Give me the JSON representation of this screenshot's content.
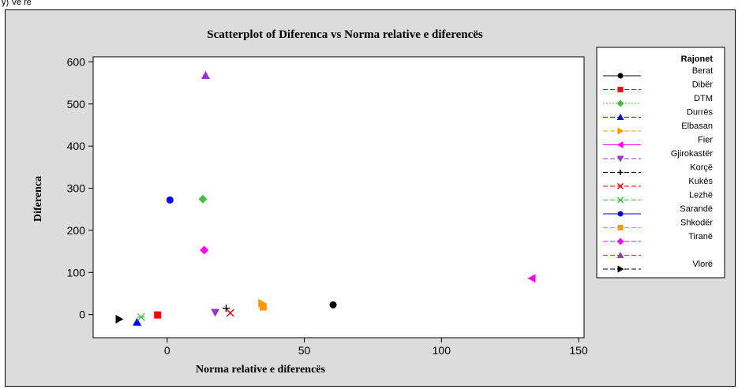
{
  "page": {
    "top_fragment": "y) Ve rë"
  },
  "chart_data": {
    "type": "scatter",
    "title": "Scatterplot of Diferenca vs Norma relative e diferencës",
    "xlabel": "Norma relative e diferencës",
    "ylabel": "Diferenca",
    "xlim": [
      -27,
      152
    ],
    "ylim": [
      -55,
      612
    ],
    "xticks": [
      0,
      50,
      100,
      150
    ],
    "yticks": [
      0,
      100,
      200,
      300,
      400,
      500,
      600
    ],
    "grid": false,
    "legend_position": "right",
    "legend_title": "Rajonet",
    "series": [
      {
        "name": "Berat",
        "color": "#000000",
        "marker": "circle",
        "line": "solid",
        "x": 60.5,
        "y": 23
      },
      {
        "name": "Dibër",
        "color": "#ff0000",
        "marker": "square",
        "line": "dash",
        "x": -3.5,
        "y": -1
      },
      {
        "name": "DTM",
        "color": "#40c040",
        "marker": "diamond",
        "line": "dot",
        "x": 13,
        "y": 274
      },
      {
        "name": "Durrës",
        "color": "#0000ff",
        "marker": "triangle-up",
        "line": "dash",
        "x": -11,
        "y": -18
      },
      {
        "name": "Elbasan",
        "color": "#ff9900",
        "marker": "triangle-right",
        "line": "dash",
        "x": 34.5,
        "y": 27
      },
      {
        "name": "Fier",
        "color": "#ff00ff",
        "marker": "triangle-left",
        "line": "solid",
        "x": 133,
        "y": 86
      },
      {
        "name": "Gjirokastër",
        "color": "#9933cc",
        "marker": "triangle-down",
        "line": "dash",
        "x": 17.5,
        "y": 5
      },
      {
        "name": "Korçë",
        "color": "#000000",
        "marker": "plus",
        "line": "dash",
        "x": 21.5,
        "y": 15
      },
      {
        "name": "Kukës",
        "color": "#ff0000",
        "marker": "x",
        "line": "dash",
        "x": 23,
        "y": 4
      },
      {
        "name": "Lezhë",
        "color": "#40c040",
        "marker": "asterisk",
        "line": "dash",
        "x": -9.5,
        "y": -6
      },
      {
        "name": "Sarandë",
        "color": "#0000ff",
        "marker": "circle",
        "line": "solid",
        "x": 1,
        "y": 272
      },
      {
        "name": "Shkodër",
        "color": "#ff9900",
        "marker": "square",
        "line": "dash",
        "x": 35,
        "y": 18
      },
      {
        "name": "Tiranë",
        "color": "#ff00ff",
        "marker": "diamond",
        "line": "dash",
        "x": 13.5,
        "y": 153
      },
      {
        "name": "",
        "color": "#9933cc",
        "marker": "triangle-up",
        "line": "dash",
        "x": 14,
        "y": 568
      },
      {
        "name": "Vlorë",
        "color": "#000000",
        "marker": "triangle-right",
        "line": "dash",
        "x": -17.5,
        "y": -11
      }
    ]
  }
}
